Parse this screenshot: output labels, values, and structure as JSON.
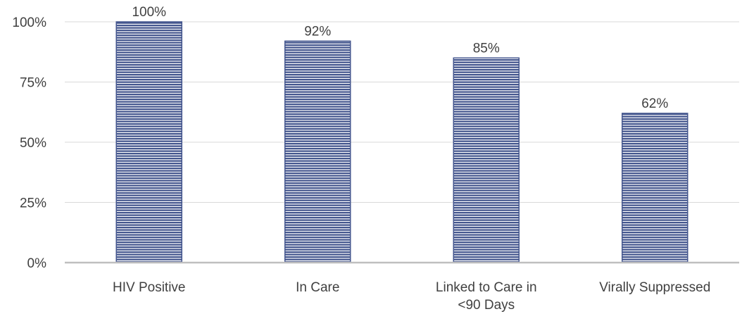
{
  "chart_data": {
    "type": "bar",
    "categories": [
      [
        "HIV Positive"
      ],
      [
        "In Care"
      ],
      [
        "Linked to Care in",
        "<90 Days"
      ],
      [
        "Virally Suppressed"
      ]
    ],
    "values": [
      100,
      92,
      85,
      62
    ],
    "data_labels": [
      "100%",
      "92%",
      "85%",
      "62%"
    ],
    "ylim": [
      0,
      100
    ],
    "yticks": [
      {
        "value": 0,
        "label": "0%"
      },
      {
        "value": 25,
        "label": "25%"
      },
      {
        "value": 50,
        "label": "50%"
      },
      {
        "value": 75,
        "label": "75%"
      },
      {
        "value": 100,
        "label": "100%"
      }
    ],
    "grid": true,
    "legend": "none",
    "colors": {
      "bar_fill": "#44568e",
      "bar_stripe": "#ffffff",
      "grid": "#d9d9d9",
      "axis": "#bfbfbf",
      "text": "#404040"
    }
  }
}
